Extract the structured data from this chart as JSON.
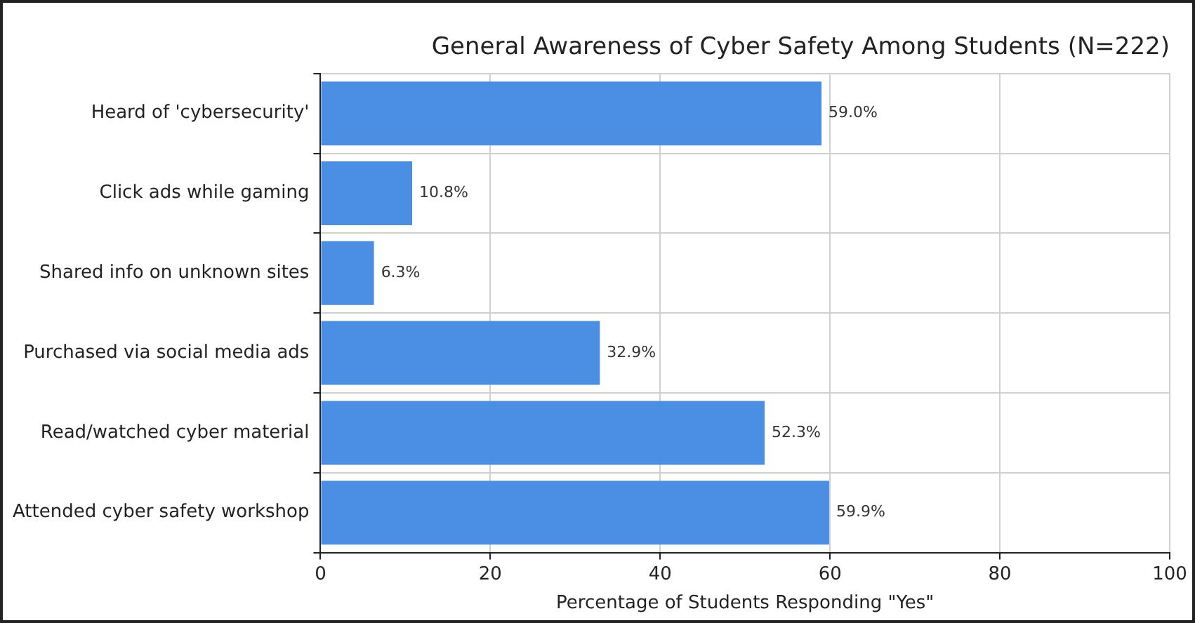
{
  "chart_data": {
    "type": "bar",
    "orientation": "horizontal",
    "title": "General Awareness of Cyber Safety Among Students (N=222)",
    "xlabel": "Percentage of Students Responding \"Yes\"",
    "categories": [
      "Heard of 'cybersecurity'",
      "Click ads while gaming",
      "Shared info on unknown sites",
      "Purchased via social media ads",
      "Read/watched cyber material",
      "Attended cyber safety workshop"
    ],
    "values": [
      59.0,
      10.8,
      6.3,
      32.9,
      52.3,
      59.9
    ],
    "value_labels": [
      "59.0%",
      "10.8%",
      "6.3%",
      "32.9%",
      "52.3%",
      "59.9%"
    ],
    "color": "#4a8fe3",
    "xlim": [
      0,
      100
    ],
    "xticks": [
      0,
      20,
      40,
      60,
      80,
      100
    ],
    "grid": true
  }
}
